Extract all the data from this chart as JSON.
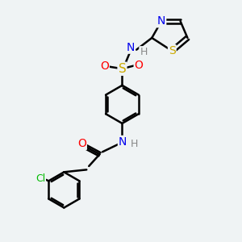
{
  "bg_color": "#eff3f4",
  "bond_color": "#000000",
  "bond_width": 1.8,
  "atom_colors": {
    "N": "#0000ee",
    "O": "#ff0000",
    "S_sulfo": "#ccaa00",
    "S_thio": "#ccaa00",
    "Cl": "#00bb00",
    "H": "#888888"
  },
  "font_size": 9,
  "fig_size": [
    3.0,
    3.0
  ],
  "dpi": 100
}
